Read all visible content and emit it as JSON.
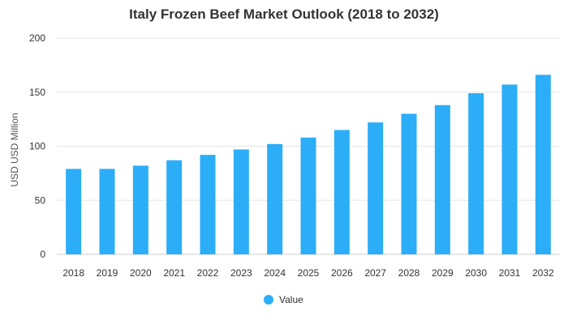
{
  "chart_data": {
    "type": "bar",
    "title": "Italy Frozen Beef Market Outlook (2018 to 2032)",
    "xlabel": "",
    "ylabel": "USD USD Million",
    "categories": [
      "2018",
      "2019",
      "2020",
      "2021",
      "2022",
      "2023",
      "2024",
      "2025",
      "2026",
      "2027",
      "2028",
      "2029",
      "2030",
      "2031",
      "2032"
    ],
    "series": [
      {
        "name": "Value",
        "values": [
          79,
          79,
          82,
          87,
          92,
          97,
          102,
          108,
          115,
          122,
          130,
          138,
          149,
          157,
          166
        ]
      }
    ],
    "yticks": [
      "0",
      "50",
      "100",
      "150",
      "200"
    ],
    "ylim": [
      0,
      200
    ],
    "grid": true,
    "legend_position": "bottom",
    "bar_color": "#2BAEF7"
  }
}
